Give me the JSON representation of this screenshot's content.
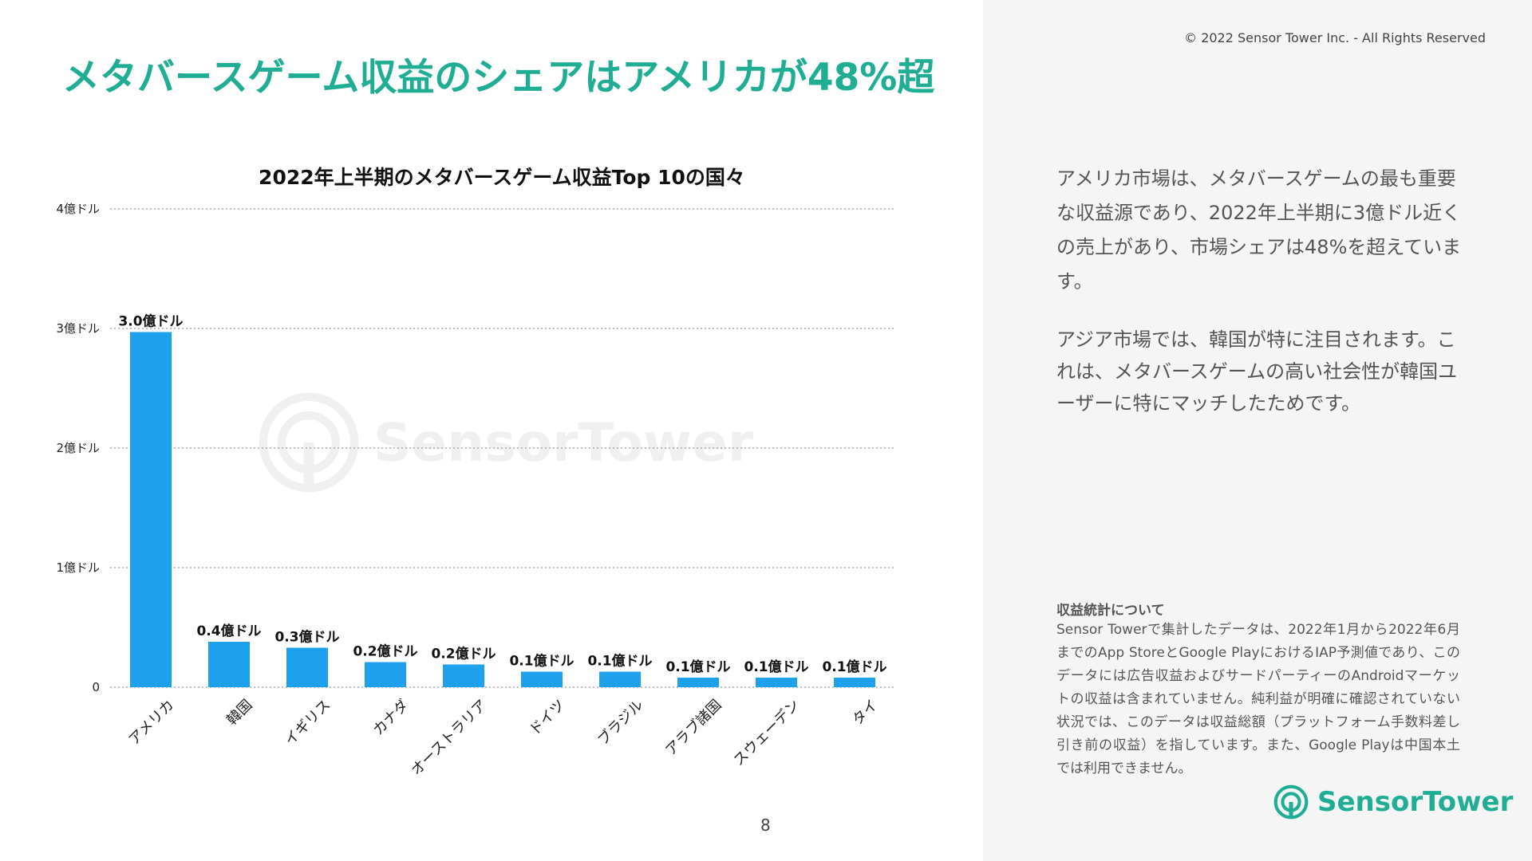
{
  "header": {
    "title": "メタバースゲーム収益のシェアはアメリカが48%超",
    "copyright": "© 2022 Sensor Tower Inc. - All Rights Reserved"
  },
  "chart_data": {
    "type": "bar",
    "title": "2022年上半期のメタバースゲーム収益Top 10の国々",
    "categories": [
      "アメリカ",
      "韓国",
      "イギリス",
      "カナダ",
      "オーストラリア",
      "ドイツ",
      "ブラジル",
      "アラブ諸国",
      "スウェーデン",
      "タイ"
    ],
    "values": [
      2.97,
      0.38,
      0.33,
      0.21,
      0.19,
      0.13,
      0.13,
      0.08,
      0.08,
      0.08
    ],
    "data_labels": [
      "3.0億ドル",
      "0.4億ドル",
      "0.3億ドル",
      "0.2億ドル",
      "0.2億ドル",
      "0.1億ドル",
      "0.1億ドル",
      "0.1億ドル",
      "0.1億ドル",
      "0.1億ドル"
    ],
    "y_ticks": [
      {
        "value": 0,
        "label": "0"
      },
      {
        "value": 1,
        "label": "1億ドル"
      },
      {
        "value": 2,
        "label": "2億ドル"
      },
      {
        "value": 3,
        "label": "3億ドル"
      },
      {
        "value": 4,
        "label": "4億ドル"
      }
    ],
    "ylim": [
      0,
      4
    ],
    "grid": true,
    "bar_color": "#1ea1ec"
  },
  "watermark": "SensorTower",
  "page_number": "8",
  "sidebar": {
    "desc1": "アメリカ市場は、メタバースゲームの最も重要な収益源であり、2022年上半期に3億ドル近くの売上があり、市場シェアは48%を超えています。",
    "desc2": "アジア市場では、韓国が特に注目されます。これは、メタバースゲームの高い社会性が韓国ユーザーに特にマッチしたためです。",
    "note_title": "収益統計について",
    "note_body": "Sensor Towerで集計したデータは、2022年1月から2022年6月までのApp StoreとGoogle PlayにおけるIAP予測値であり、このデータには広告収益およびサードパーティーのAndroidマーケットの収益は含まれていません。純利益が明確に確認されていない状況では、このデータは収益総額（プラットフォーム手数料差し引き前の収益）を指しています。また、Google Playは中国本土では利用できません。",
    "logo_text": "SensorTower"
  },
  "colors": {
    "brand": "#1fae94",
    "bar": "#1ea1ec"
  }
}
